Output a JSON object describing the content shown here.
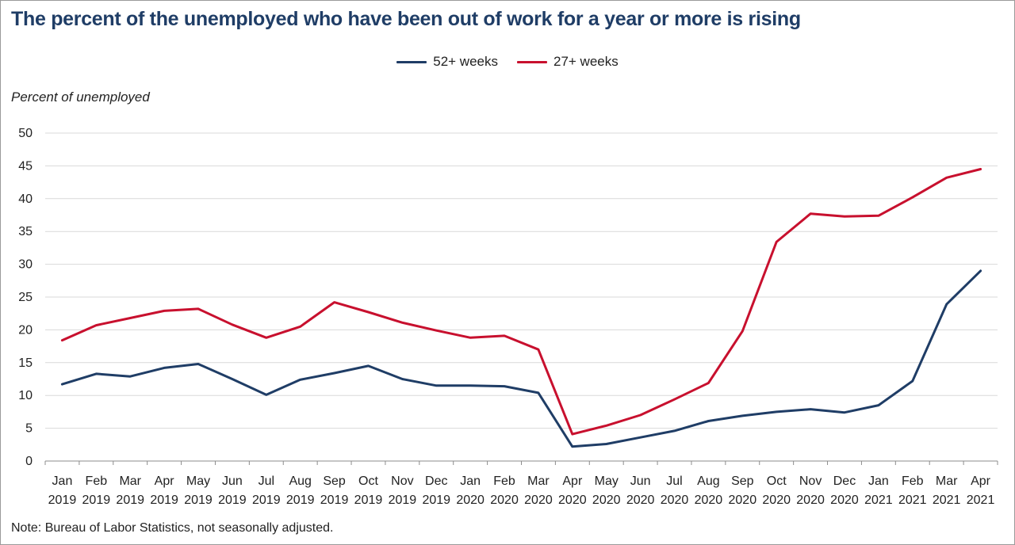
{
  "title": "The percent of the unemployed who have been out of work for a year or more is rising",
  "ylabel": "Percent of unemployed",
  "note": "Note: Bureau of Labor Statistics, not seasonally adjusted.",
  "legend": [
    {
      "label": "52+ weeks",
      "color": "#1f3d66"
    },
    {
      "label": "27+ weeks",
      "color": "#c8102e"
    }
  ],
  "chart_data": {
    "type": "line",
    "title": "The percent of the unemployed who have been out of work for a year or more is rising",
    "ylabel": "Percent of unemployed",
    "xlabel": "",
    "ylim": [
      0,
      50
    ],
    "yticks": [
      0,
      5,
      10,
      15,
      20,
      25,
      30,
      35,
      40,
      45,
      50
    ],
    "grid": true,
    "legend_position": "top-center",
    "categories": [
      {
        "month": "Jan",
        "year": "2019"
      },
      {
        "month": "Feb",
        "year": "2019"
      },
      {
        "month": "Mar",
        "year": "2019"
      },
      {
        "month": "Apr",
        "year": "2019"
      },
      {
        "month": "May",
        "year": "2019"
      },
      {
        "month": "Jun",
        "year": "2019"
      },
      {
        "month": "Jul",
        "year": "2019"
      },
      {
        "month": "Aug",
        "year": "2019"
      },
      {
        "month": "Sep",
        "year": "2019"
      },
      {
        "month": "Oct",
        "year": "2019"
      },
      {
        "month": "Nov",
        "year": "2019"
      },
      {
        "month": "Dec",
        "year": "2019"
      },
      {
        "month": "Jan",
        "year": "2020"
      },
      {
        "month": "Feb",
        "year": "2020"
      },
      {
        "month": "Mar",
        "year": "2020"
      },
      {
        "month": "Apr",
        "year": "2020"
      },
      {
        "month": "May",
        "year": "2020"
      },
      {
        "month": "Jun",
        "year": "2020"
      },
      {
        "month": "Jul",
        "year": "2020"
      },
      {
        "month": "Aug",
        "year": "2020"
      },
      {
        "month": "Sep",
        "year": "2020"
      },
      {
        "month": "Oct",
        "year": "2020"
      },
      {
        "month": "Nov",
        "year": "2020"
      },
      {
        "month": "Dec",
        "year": "2020"
      },
      {
        "month": "Jan",
        "year": "2021"
      },
      {
        "month": "Feb",
        "year": "2021"
      },
      {
        "month": "Mar",
        "year": "2021"
      },
      {
        "month": "Apr",
        "year": "2021"
      }
    ],
    "series": [
      {
        "name": "52+ weeks",
        "color": "#1f3d66",
        "values": [
          11.7,
          13.3,
          12.9,
          14.2,
          14.8,
          12.5,
          10.1,
          12.4,
          13.4,
          14.5,
          12.5,
          11.5,
          11.5,
          11.4,
          10.4,
          2.2,
          2.6,
          3.6,
          4.6,
          6.1,
          6.9,
          7.5,
          7.9,
          7.4,
          8.5,
          12.2,
          23.9,
          29.0
        ]
      },
      {
        "name": "27+ weeks",
        "color": "#c8102e",
        "values": [
          18.4,
          20.7,
          21.8,
          22.9,
          23.2,
          20.8,
          18.8,
          20.5,
          24.2,
          22.7,
          21.1,
          19.9,
          18.8,
          19.1,
          17.0,
          4.1,
          5.4,
          7.0,
          9.4,
          11.9,
          19.8,
          33.4,
          37.7,
          37.3,
          37.4,
          40.2,
          43.2,
          44.5
        ]
      }
    ]
  }
}
